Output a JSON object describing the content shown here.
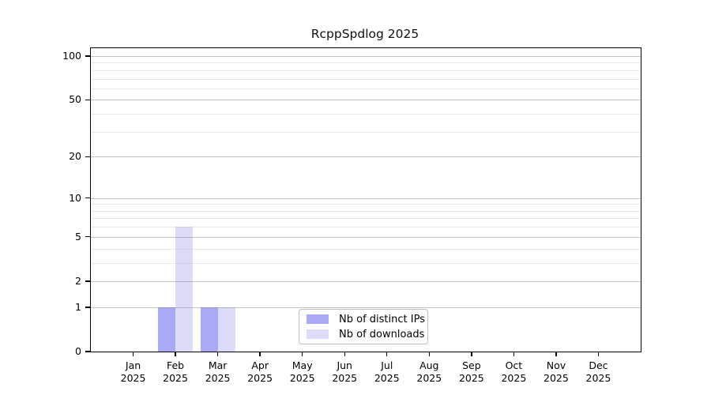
{
  "chart_data": {
    "type": "bar",
    "title": "RcppSpdlog 2025",
    "year_label": "2025",
    "categories": [
      "Jan",
      "Feb",
      "Mar",
      "Apr",
      "May",
      "Jun",
      "Jul",
      "Aug",
      "Sep",
      "Oct",
      "Nov",
      "Dec"
    ],
    "series": [
      {
        "name": "Nb of distinct IPs",
        "color": "#a9a9f6",
        "values": [
          0,
          1,
          1,
          0,
          0,
          0,
          0,
          0,
          0,
          0,
          0,
          0
        ]
      },
      {
        "name": "Nb of downloads",
        "color": "#dcdcf9",
        "values": [
          0,
          6,
          1,
          0,
          0,
          0,
          0,
          0,
          0,
          0,
          0,
          0
        ]
      }
    ],
    "y_axis": {
      "scale": "log1p",
      "tick_labels": [
        100,
        50,
        20,
        10,
        5,
        2,
        1,
        0
      ],
      "major_gridlines": [
        1,
        2,
        5,
        10,
        20,
        50,
        100
      ],
      "minor_gridlines": [
        3,
        4,
        6,
        7,
        8,
        9,
        30,
        40,
        60,
        70,
        80,
        90
      ]
    },
    "legend_position": "bottom-center",
    "grid": true,
    "colors": {
      "bar_distinct_ips": "#a9a9f6",
      "bar_downloads": "#dcdcf9",
      "major_grid": "#c9c9c9",
      "minor_grid": "#ececec",
      "axis": "#000000"
    }
  }
}
